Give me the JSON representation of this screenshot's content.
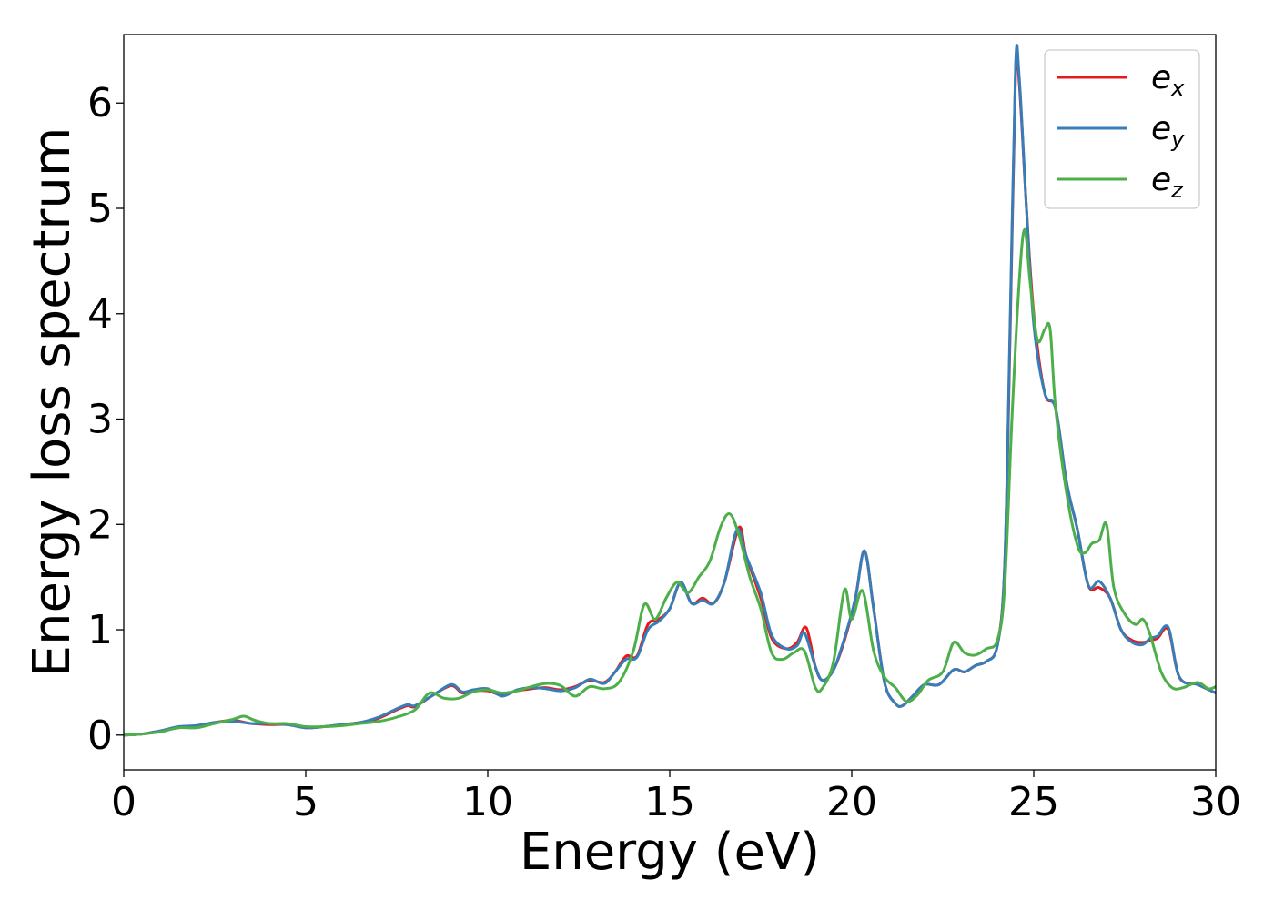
{
  "chart_data": {
    "type": "line",
    "xlabel": "Energy (eV)",
    "ylabel": "Energy loss spectrum",
    "xlim": [
      0,
      30
    ],
    "ylim": [
      -0.33,
      6.65
    ],
    "xticks": [
      0,
      5,
      10,
      15,
      20,
      25,
      30
    ],
    "yticks": [
      0,
      1,
      2,
      3,
      4,
      5,
      6
    ],
    "grid": false,
    "legend_position": "top-right",
    "series": [
      {
        "name": "e_x",
        "label_base": "e",
        "label_sub": "x",
        "color": "#e41a1c",
        "x": [
          0,
          0.5,
          1.0,
          1.5,
          2.0,
          2.5,
          3.0,
          3.5,
          4.0,
          4.5,
          5.0,
          5.5,
          6.0,
          6.5,
          7.0,
          7.5,
          7.8,
          8.0,
          8.5,
          9.0,
          9.3,
          9.6,
          10.0,
          10.4,
          10.8,
          11.2,
          11.6,
          12.0,
          12.4,
          12.8,
          13.2,
          13.5,
          13.8,
          14.1,
          14.4,
          14.7,
          15.0,
          15.3,
          15.6,
          15.9,
          16.2,
          16.5,
          16.9,
          17.1,
          17.5,
          17.8,
          18.2,
          18.5,
          18.75,
          19.0,
          19.2,
          19.5,
          19.8,
          20.1,
          20.35,
          20.6,
          20.9,
          21.2,
          21.4,
          21.7,
          22.0,
          22.4,
          22.8,
          23.1,
          23.4,
          23.7,
          24.0,
          24.2,
          24.35,
          24.5,
          24.6,
          24.8,
          25.0,
          25.3,
          25.6,
          25.9,
          26.2,
          26.5,
          26.8,
          27.1,
          27.4,
          27.7,
          28.0,
          28.2,
          28.4,
          28.7,
          29.0,
          29.5,
          30.0
        ],
        "y": [
          0.0,
          0.01,
          0.04,
          0.07,
          0.09,
          0.12,
          0.14,
          0.11,
          0.1,
          0.1,
          0.07,
          0.08,
          0.1,
          0.12,
          0.16,
          0.24,
          0.28,
          0.27,
          0.38,
          0.47,
          0.4,
          0.42,
          0.42,
          0.38,
          0.42,
          0.44,
          0.45,
          0.43,
          0.46,
          0.52,
          0.5,
          0.6,
          0.75,
          0.75,
          1.05,
          1.1,
          1.2,
          1.45,
          1.25,
          1.3,
          1.25,
          1.45,
          1.97,
          1.7,
          1.3,
          0.92,
          0.82,
          0.88,
          1.02,
          0.65,
          0.52,
          0.62,
          0.9,
          1.3,
          1.75,
          1.2,
          0.5,
          0.3,
          0.28,
          0.38,
          0.48,
          0.48,
          0.62,
          0.6,
          0.66,
          0.7,
          0.85,
          1.6,
          3.8,
          6.3,
          6.2,
          5.0,
          4.0,
          3.25,
          3.1,
          2.4,
          1.95,
          1.42,
          1.4,
          1.3,
          1.0,
          0.9,
          0.88,
          0.9,
          0.92,
          1.0,
          0.55,
          0.48,
          0.4
        ]
      },
      {
        "name": "e_y",
        "label_base": "e",
        "label_sub": "y",
        "color": "#377eb8",
        "x": [
          0,
          0.5,
          1.0,
          1.5,
          2.0,
          2.5,
          3.0,
          3.5,
          4.0,
          4.5,
          5.0,
          5.5,
          6.0,
          6.5,
          7.0,
          7.5,
          7.8,
          8.0,
          8.5,
          9.0,
          9.3,
          9.6,
          10.0,
          10.4,
          10.8,
          11.2,
          11.6,
          12.0,
          12.4,
          12.8,
          13.2,
          13.5,
          13.8,
          14.1,
          14.4,
          14.7,
          15.0,
          15.3,
          15.6,
          15.9,
          16.2,
          16.5,
          16.85,
          17.1,
          17.5,
          17.8,
          18.2,
          18.5,
          18.7,
          19.0,
          19.2,
          19.5,
          19.8,
          20.1,
          20.35,
          20.6,
          20.9,
          21.2,
          21.4,
          21.7,
          22.0,
          22.4,
          22.8,
          23.1,
          23.4,
          23.7,
          24.0,
          24.2,
          24.35,
          24.5,
          24.6,
          24.8,
          25.0,
          25.3,
          25.6,
          25.9,
          26.2,
          26.5,
          26.8,
          27.1,
          27.4,
          27.7,
          28.0,
          28.2,
          28.4,
          28.7,
          29.0,
          29.5,
          30.0
        ],
        "y": [
          0.0,
          0.01,
          0.04,
          0.08,
          0.09,
          0.12,
          0.13,
          0.11,
          0.11,
          0.1,
          0.07,
          0.08,
          0.1,
          0.12,
          0.17,
          0.25,
          0.29,
          0.28,
          0.38,
          0.48,
          0.41,
          0.43,
          0.44,
          0.37,
          0.43,
          0.45,
          0.44,
          0.42,
          0.45,
          0.53,
          0.49,
          0.6,
          0.72,
          0.74,
          1.0,
          1.08,
          1.2,
          1.45,
          1.25,
          1.28,
          1.25,
          1.45,
          1.95,
          1.7,
          1.35,
          0.95,
          0.82,
          0.85,
          0.97,
          0.65,
          0.52,
          0.62,
          0.92,
          1.3,
          1.75,
          1.2,
          0.5,
          0.3,
          0.28,
          0.38,
          0.48,
          0.48,
          0.62,
          0.6,
          0.66,
          0.7,
          0.85,
          1.6,
          3.9,
          6.35,
          6.25,
          5.0,
          3.9,
          3.25,
          3.1,
          2.4,
          1.95,
          1.42,
          1.46,
          1.3,
          1.0,
          0.88,
          0.86,
          0.92,
          0.94,
          1.02,
          0.55,
          0.48,
          0.4
        ]
      },
      {
        "name": "e_z",
        "label_base": "e",
        "label_sub": "z",
        "color": "#4daf4a",
        "x": [
          0,
          0.5,
          1.0,
          1.5,
          2.0,
          2.5,
          3.0,
          3.3,
          3.6,
          4.0,
          4.5,
          5.0,
          5.5,
          6.0,
          6.5,
          7.0,
          7.5,
          8.0,
          8.4,
          8.8,
          9.2,
          9.6,
          10.0,
          10.4,
          10.8,
          11.2,
          11.6,
          12.0,
          12.4,
          12.8,
          13.2,
          13.6,
          14.0,
          14.3,
          14.6,
          14.9,
          15.2,
          15.5,
          15.8,
          16.1,
          16.4,
          16.65,
          16.9,
          17.2,
          17.5,
          17.8,
          18.1,
          18.4,
          18.7,
          19.0,
          19.2,
          19.5,
          19.8,
          20.0,
          20.3,
          20.6,
          20.9,
          21.2,
          21.5,
          21.8,
          22.1,
          22.5,
          22.8,
          23.1,
          23.4,
          23.7,
          24.0,
          24.2,
          24.4,
          24.6,
          24.75,
          24.9,
          25.1,
          25.3,
          25.45,
          25.6,
          25.9,
          26.2,
          26.4,
          26.6,
          26.8,
          27.0,
          27.2,
          27.5,
          27.8,
          28.0,
          28.2,
          28.5,
          28.8,
          29.1,
          29.5,
          29.8,
          30.0
        ],
        "y": [
          0.0,
          0.01,
          0.03,
          0.07,
          0.07,
          0.11,
          0.15,
          0.18,
          0.14,
          0.11,
          0.11,
          0.08,
          0.08,
          0.09,
          0.11,
          0.13,
          0.17,
          0.24,
          0.4,
          0.35,
          0.35,
          0.41,
          0.43,
          0.4,
          0.42,
          0.46,
          0.49,
          0.47,
          0.37,
          0.46,
          0.44,
          0.5,
          0.8,
          1.24,
          1.1,
          1.3,
          1.45,
          1.35,
          1.5,
          1.65,
          1.98,
          2.1,
          1.9,
          1.5,
          1.2,
          0.78,
          0.72,
          0.78,
          0.8,
          0.45,
          0.45,
          0.7,
          1.38,
          1.1,
          1.37,
          0.8,
          0.55,
          0.45,
          0.32,
          0.38,
          0.52,
          0.6,
          0.88,
          0.78,
          0.76,
          0.82,
          0.9,
          1.4,
          3.0,
          4.3,
          4.8,
          4.3,
          3.75,
          3.85,
          3.85,
          3.1,
          2.3,
          1.8,
          1.73,
          1.82,
          1.85,
          2.0,
          1.4,
          1.15,
          1.05,
          1.1,
          0.95,
          0.6,
          0.45,
          0.45,
          0.5,
          0.44,
          0.46
        ]
      }
    ]
  }
}
